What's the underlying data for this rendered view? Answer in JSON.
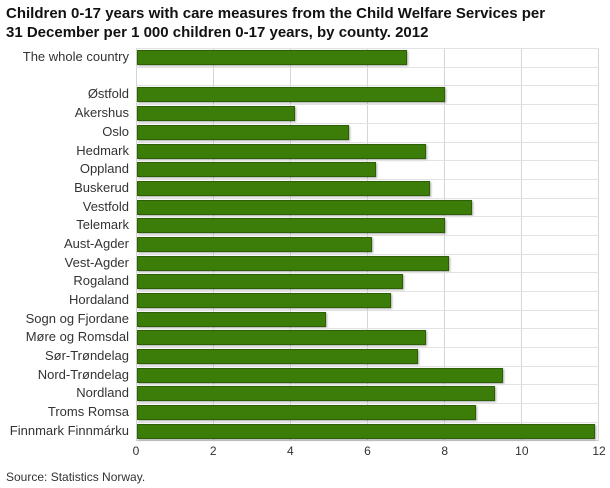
{
  "title_lines": [
    "Children 0-17 years with care measures from the Child Welfare Services per",
    "31 December per 1 000 children 0-17 years, by county. 2012"
  ],
  "source": "Source: Statistics Norway.",
  "colors": {
    "bar_fill": "#3b7d08",
    "bar_border": "#2d5f05",
    "grid_line": "#d4d4d4",
    "row_line": "#e2e2e2"
  },
  "chart_data": {
    "type": "bar",
    "orientation": "horizontal",
    "title": "Children 0-17 years with care measures from the Child Welfare Services per 31 December per 1 000 children 0-17 years, by county. 2012",
    "categories": [
      "The whole country",
      "Østfold",
      "Akershus",
      "Oslo",
      "Hedmark",
      "Oppland",
      "Buskerud",
      "Vestfold",
      "Telemark",
      "Aust-Agder",
      "Vest-Agder",
      "Rogaland",
      "Hordaland",
      "Sogn og Fjordane",
      "Møre og Romsdal",
      "Sør-Trøndelag",
      "Nord-Trøndelag",
      "Nordland",
      "Troms Romsa",
      "Finnmark Finnmárku"
    ],
    "values": [
      7.0,
      8.0,
      4.1,
      5.5,
      7.5,
      6.2,
      7.6,
      8.7,
      8.0,
      6.1,
      8.1,
      6.9,
      6.6,
      4.9,
      7.5,
      7.3,
      9.5,
      9.3,
      8.8,
      11.9
    ],
    "xlim": [
      0,
      12
    ],
    "xticks": [
      0,
      2,
      4,
      6,
      8,
      10,
      12
    ],
    "xlabel": "",
    "ylabel": "",
    "grid": true,
    "legend": false,
    "gap_after_index": 0
  }
}
